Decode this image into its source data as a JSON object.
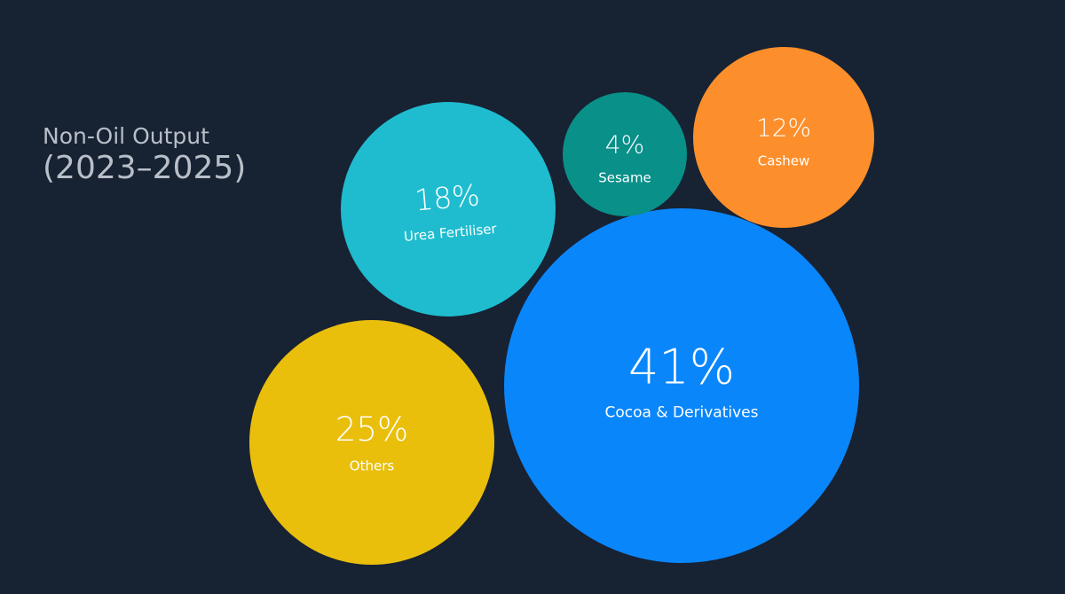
{
  "title": {
    "line1": "Non-Oil Output",
    "line2": "(2023–2025)"
  },
  "chart_data": {
    "type": "bubble",
    "unit": "%",
    "items": [
      {
        "label": "Cocoa & Derivatives",
        "value": 41,
        "color": "#0a86fb"
      },
      {
        "label": "Others",
        "value": 25,
        "color": "#e9bf0c"
      },
      {
        "label": "Urea Fertiliser",
        "value": 18,
        "color": "#1fbccf"
      },
      {
        "label": "Cashew",
        "value": 12,
        "color": "#fc8f2b"
      },
      {
        "label": "Sesame",
        "value": 4,
        "color": "#089089"
      }
    ]
  }
}
